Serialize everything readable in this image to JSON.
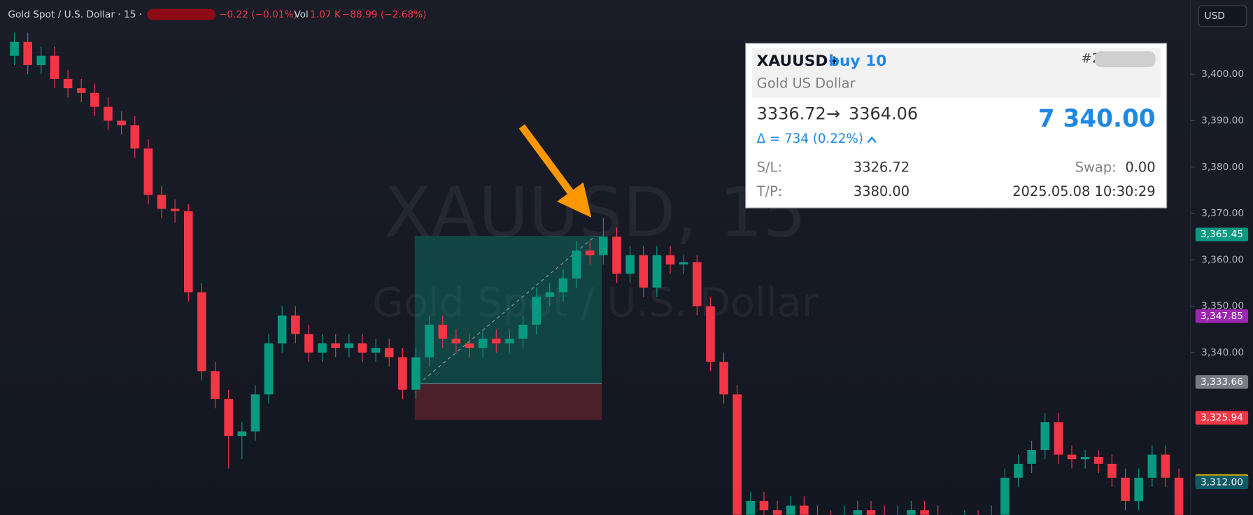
{
  "header": {
    "symbol": "Gold Spot / U.S. Dollar · 15 ·",
    "change": "−0.22 (−0.01%)",
    "vol_label": "Vol",
    "vol_value": "1.07 K",
    "vol_change": "−88.99 (−2.68%)",
    "currency_button": "USD"
  },
  "watermark": {
    "line1": "XAUUSD, 15",
    "line2": "Gold Spot / U.S. Dollar"
  },
  "card": {
    "symbol": "XAUUSD+",
    "side": "buy 10",
    "description": "Gold US Dollar",
    "ticket": "#2",
    "entry": "3336.72",
    "arrow": "→",
    "exit": "3364.06",
    "profit": "7 340.00",
    "delta": "Δ = 734 (0.22%)",
    "sl_label": "S/L:",
    "sl": "3326.72",
    "swap_label": "Swap:",
    "swap": "0.00",
    "tp_label": "T/P:",
    "tp": "3380.00",
    "time": "2025.05.08 10:30:29"
  },
  "chart_data": {
    "type": "candlestick",
    "ylim": [
      3305,
      3416
    ],
    "yticks": [
      {
        "value": 3400,
        "label": "3,400.00"
      },
      {
        "value": 3390,
        "label": "3,390.00"
      },
      {
        "value": 3380,
        "label": "3,380.00"
      },
      {
        "value": 3370,
        "label": "3,370.00"
      },
      {
        "value": 3360,
        "label": "3,360.00"
      },
      {
        "value": 3350,
        "label": "3,350.00"
      },
      {
        "value": 3340,
        "label": "3,340.00"
      }
    ],
    "up_color": "#089981",
    "down_color": "#f23645",
    "price_labels": [
      {
        "value": 3365.45,
        "label": "3,365.45",
        "color": "#089981"
      },
      {
        "value": 3347.85,
        "label": "3,347.85",
        "color": "#9c27b0"
      },
      {
        "value": 3333.66,
        "label": "3,333.66",
        "color": "#787b86"
      },
      {
        "value": 3325.94,
        "label": "3,325.94",
        "color": "#f23645"
      },
      {
        "value": 3312.29,
        "label": "3,312.29",
        "color": "#d4b106"
      },
      {
        "value": 3312.0,
        "label": "3,312.00",
        "color": "#0b5a66"
      }
    ],
    "candles": [
      [
        3404,
        3409,
        3402,
        3407
      ],
      [
        3407,
        3409,
        3400,
        3402
      ],
      [
        3402,
        3406,
        3400,
        3404
      ],
      [
        3404,
        3406,
        3397,
        3399
      ],
      [
        3399,
        3401,
        3395,
        3397
      ],
      [
        3397,
        3399,
        3394,
        3396
      ],
      [
        3396,
        3398,
        3391,
        3393
      ],
      [
        3393,
        3395,
        3388,
        3390
      ],
      [
        3390,
        3392,
        3387,
        3389
      ],
      [
        3389,
        3391,
        3382,
        3384
      ],
      [
        3384,
        3386,
        3372,
        3374
      ],
      [
        3374,
        3376,
        3369,
        3371
      ],
      [
        3371,
        3373,
        3368,
        3370.5
      ],
      [
        3370.5,
        3372,
        3351,
        3353
      ],
      [
        3353,
        3355,
        3334,
        3336
      ],
      [
        3336,
        3338,
        3328,
        3330
      ],
      [
        3330,
        3332,
        3315,
        3322
      ],
      [
        3322,
        3325,
        3317,
        3323
      ],
      [
        3323,
        3333,
        3321,
        3331
      ],
      [
        3331,
        3344,
        3329,
        3342
      ],
      [
        3342,
        3350,
        3340,
        3348
      ],
      [
        3348,
        3350,
        3342,
        3344
      ],
      [
        3344,
        3346,
        3338,
        3340
      ],
      [
        3340,
        3344,
        3338,
        3342
      ],
      [
        3342,
        3344,
        3339,
        3341
      ],
      [
        3341,
        3344,
        3339,
        3342
      ],
      [
        3342,
        3344,
        3338,
        3340
      ],
      [
        3340,
        3343,
        3338,
        3341
      ],
      [
        3341,
        3343,
        3337,
        3339
      ],
      [
        3339,
        3341,
        3330,
        3332
      ],
      [
        3332,
        3341,
        3330,
        3339
      ],
      [
        3339,
        3348,
        3337,
        3346
      ],
      [
        3346,
        3348,
        3341,
        3343
      ],
      [
        3343,
        3345,
        3340,
        3342
      ],
      [
        3342,
        3344,
        3339,
        3341
      ],
      [
        3341,
        3345,
        3339,
        3343
      ],
      [
        3343,
        3345,
        3340,
        3342
      ],
      [
        3342,
        3345,
        3340,
        3343
      ],
      [
        3343,
        3348,
        3341,
        3346
      ],
      [
        3346,
        3354,
        3344,
        3352
      ],
      [
        3352,
        3355,
        3350,
        3353
      ],
      [
        3353,
        3358,
        3351,
        3356
      ],
      [
        3356,
        3364,
        3354,
        3362
      ],
      [
        3362,
        3364,
        3359,
        3361
      ],
      [
        3361,
        3369,
        3359,
        3365
      ],
      [
        3365,
        3367,
        3355,
        3357
      ],
      [
        3357,
        3363,
        3355,
        3361
      ],
      [
        3361,
        3363,
        3352,
        3354
      ],
      [
        3354,
        3363,
        3352,
        3361
      ],
      [
        3361,
        3363,
        3357,
        3359
      ],
      [
        3359,
        3361,
        3357,
        3359.5
      ],
      [
        3359.5,
        3361,
        3348,
        3350
      ],
      [
        3350,
        3352,
        3336,
        3338
      ],
      [
        3338,
        3340,
        3329,
        3331
      ],
      [
        3331,
        3333,
        3303,
        3305
      ],
      [
        3305,
        3310,
        3303,
        3308
      ],
      [
        3308,
        3310,
        3304,
        3306
      ],
      [
        3306,
        3308,
        3303,
        3305
      ],
      [
        3305,
        3309,
        3303,
        3307
      ],
      [
        3307,
        3309,
        3303,
        3305
      ],
      [
        3305,
        3307,
        3302,
        3304
      ],
      [
        3304,
        3306,
        3301,
        3303
      ],
      [
        3303,
        3307,
        3301,
        3305
      ],
      [
        3305,
        3308,
        3303,
        3306
      ],
      [
        3306,
        3308,
        3303,
        3305
      ],
      [
        3305,
        3307,
        3302,
        3304
      ],
      [
        3304,
        3307,
        3302,
        3305
      ],
      [
        3305,
        3308,
        3303,
        3306
      ],
      [
        3306,
        3308,
        3303,
        3305
      ],
      [
        3305,
        3307,
        3301,
        3303
      ],
      [
        3303,
        3305,
        3300,
        3302
      ],
      [
        3302,
        3306,
        3300,
        3304
      ],
      [
        3304,
        3306,
        3301,
        3303
      ],
      [
        3303,
        3307,
        3301,
        3305
      ],
      [
        3305,
        3315,
        3303,
        3313
      ],
      [
        3313,
        3318,
        3311,
        3316
      ],
      [
        3316,
        3321,
        3314,
        3319
      ],
      [
        3319,
        3327,
        3317,
        3325
      ],
      [
        3325,
        3327,
        3316,
        3318
      ],
      [
        3318,
        3320,
        3315,
        3317
      ],
      [
        3317,
        3319,
        3315,
        3317.5
      ],
      [
        3317.5,
        3319,
        3314,
        3316
      ],
      [
        3316,
        3318,
        3311,
        3313
      ],
      [
        3313,
        3315,
        3306,
        3308
      ],
      [
        3308,
        3315,
        3306,
        3313
      ],
      [
        3313,
        3320,
        3311,
        3318
      ],
      [
        3318,
        3320,
        3311,
        3313
      ],
      [
        3313,
        3315,
        3300,
        3303
      ]
    ]
  }
}
